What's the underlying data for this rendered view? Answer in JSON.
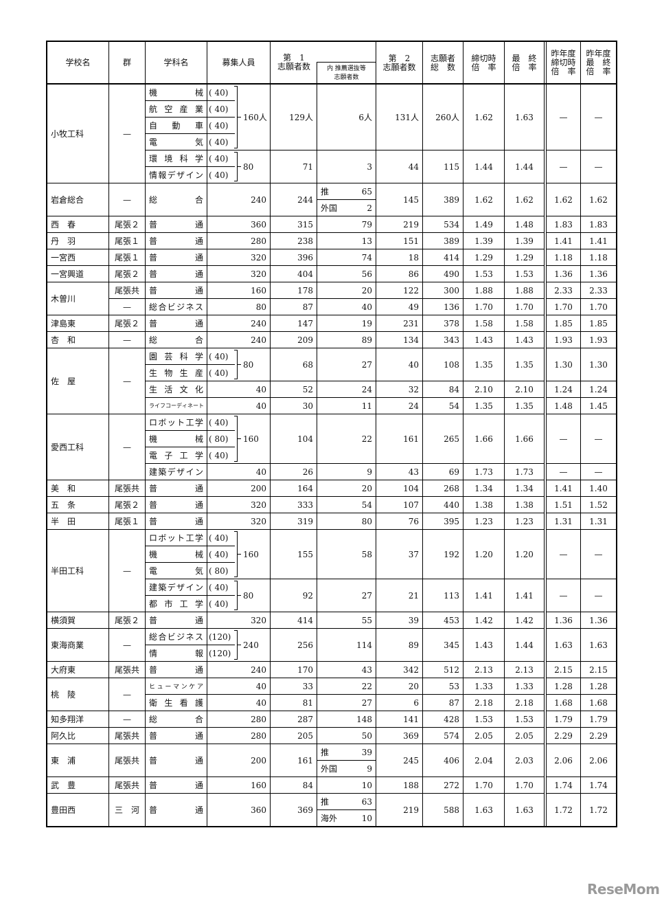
{
  "header": {
    "school": "学校名",
    "group": "群",
    "dept": "学科名",
    "recruit": "募集人員",
    "first": [
      "第　1",
      "志願者数"
    ],
    "recommend": [
      "内 推薦選抜等",
      "志願者数"
    ],
    "second": [
      "第　2",
      "志願者数"
    ],
    "total": [
      "志願者",
      "総　数"
    ],
    "rate_close": [
      "締切時",
      "倍　率"
    ],
    "rate_final": [
      "最　終",
      "倍　率"
    ],
    "prev_close": [
      "昨年度",
      "締切時",
      "倍　率"
    ],
    "prev_final": [
      "昨年度",
      "最　終",
      "倍　率"
    ]
  },
  "schools": [
    {
      "name": "小牧工科",
      "group": "—",
      "blocks": [
        {
          "depts": [
            {
              "name": "機械",
              "quota": "( 40)"
            },
            {
              "name": "航空産業",
              "quota": "( 40)"
            },
            {
              "name": "自動車",
              "quota": "( 40)"
            },
            {
              "name": "電気",
              "quota": "( 40)"
            }
          ],
          "recruit": "160人",
          "first": "129人",
          "recommend": "6人",
          "second": "131人",
          "total": "260人",
          "rate_close": "1.62",
          "rate_final": "1.63",
          "prev_close": "—",
          "prev_final": "—"
        },
        {
          "depts": [
            {
              "name": "環境科学",
              "quota": "( 40)"
            },
            {
              "name": "情報デザイン",
              "quota": "( 40)"
            }
          ],
          "recruit": "80",
          "first": "71",
          "recommend": "3",
          "second": "44",
          "total": "115",
          "rate_close": "1.44",
          "rate_final": "1.44",
          "prev_close": "—",
          "prev_final": "—"
        }
      ]
    },
    {
      "name": "岩倉総合",
      "group": "—",
      "blocks": [
        {
          "depts": [
            {
              "name": "総合"
            }
          ],
          "recruit": "240",
          "first": "244",
          "recommend": [
            {
              "label": "推",
              "value": "65"
            },
            {
              "label": "外国",
              "value": "2"
            }
          ],
          "second": "145",
          "total": "389",
          "rate_close": "1.62",
          "rate_final": "1.62",
          "prev_close": "1.62",
          "prev_final": "1.62"
        }
      ]
    },
    {
      "name": "西　春",
      "group": "尾張２",
      "blocks": [
        {
          "depts": [
            {
              "name": "普通"
            }
          ],
          "recruit": "360",
          "first": "315",
          "recommend": "79",
          "second": "219",
          "total": "534",
          "rate_close": "1.49",
          "rate_final": "1.48",
          "prev_close": "1.83",
          "prev_final": "1.83"
        }
      ]
    },
    {
      "name": "丹　羽",
      "group": "尾張１",
      "blocks": [
        {
          "depts": [
            {
              "name": "普通"
            }
          ],
          "recruit": "280",
          "first": "238",
          "recommend": "13",
          "second": "151",
          "total": "389",
          "rate_close": "1.39",
          "rate_final": "1.39",
          "prev_close": "1.41",
          "prev_final": "1.41"
        }
      ]
    },
    {
      "name": "一宮西",
      "group": "尾張１",
      "blocks": [
        {
          "depts": [
            {
              "name": "普通"
            }
          ],
          "recruit": "320",
          "first": "396",
          "recommend": "74",
          "second": "18",
          "total": "414",
          "rate_close": "1.29",
          "rate_final": "1.29",
          "prev_close": "1.18",
          "prev_final": "1.18"
        }
      ]
    },
    {
      "name": "一宮興道",
      "group": "尾張２",
      "blocks": [
        {
          "depts": [
            {
              "name": "普通"
            }
          ],
          "recruit": "320",
          "first": "404",
          "recommend": "56",
          "second": "86",
          "total": "490",
          "rate_close": "1.53",
          "rate_final": "1.53",
          "prev_close": "1.36",
          "prev_final": "1.36"
        }
      ]
    },
    {
      "name": "木曽川",
      "blocks": [
        {
          "group": "尾張共",
          "depts": [
            {
              "name": "普通"
            }
          ],
          "recruit": "160",
          "first": "178",
          "recommend": "20",
          "second": "122",
          "total": "300",
          "rate_close": "1.88",
          "rate_final": "1.88",
          "prev_close": "2.33",
          "prev_final": "2.33"
        },
        {
          "group": "—",
          "depts": [
            {
              "name": "総合ビジネス"
            }
          ],
          "recruit": "80",
          "first": "87",
          "recommend": "40",
          "second": "49",
          "total": "136",
          "rate_close": "1.70",
          "rate_final": "1.70",
          "prev_close": "1.70",
          "prev_final": "1.70"
        }
      ]
    },
    {
      "name": "津島東",
      "group": "尾張２",
      "blocks": [
        {
          "depts": [
            {
              "name": "普通"
            }
          ],
          "recruit": "240",
          "first": "147",
          "recommend": "19",
          "second": "231",
          "total": "378",
          "rate_close": "1.58",
          "rate_final": "1.58",
          "prev_close": "1.85",
          "prev_final": "1.85"
        }
      ]
    },
    {
      "name": "杏　和",
      "group": "—",
      "blocks": [
        {
          "depts": [
            {
              "name": "総合"
            }
          ],
          "recruit": "240",
          "first": "209",
          "recommend": "89",
          "second": "134",
          "total": "343",
          "rate_close": "1.43",
          "rate_final": "1.43",
          "prev_close": "1.93",
          "prev_final": "1.93"
        }
      ]
    },
    {
      "name": "佐　屋",
      "group": "—",
      "blocks": [
        {
          "depts": [
            {
              "name": "園芸科学",
              "quota": "( 40)"
            },
            {
              "name": "生物生産",
              "quota": "( 40)"
            }
          ],
          "recruit": "80",
          "first": "68",
          "recommend": "27",
          "second": "40",
          "total": "108",
          "rate_close": "1.35",
          "rate_final": "1.35",
          "prev_close": "1.30",
          "prev_final": "1.30"
        },
        {
          "depts": [
            {
              "name": "生活文化"
            }
          ],
          "recruit": "40",
          "first": "52",
          "recommend": "24",
          "second": "32",
          "total": "84",
          "rate_close": "2.10",
          "rate_final": "2.10",
          "prev_close": "1.24",
          "prev_final": "1.24"
        },
        {
          "depts": [
            {
              "name": "ライフコーディネート"
            }
          ],
          "recruit": "40",
          "first": "30",
          "recommend": "11",
          "second": "24",
          "total": "54",
          "rate_close": "1.35",
          "rate_final": "1.35",
          "prev_close": "1.48",
          "prev_final": "1.45"
        }
      ]
    },
    {
      "name": "愛西工科",
      "group": "—",
      "blocks": [
        {
          "depts": [
            {
              "name": "ロボット工学",
              "quota": "( 40)"
            },
            {
              "name": "機械",
              "quota": "( 80)"
            },
            {
              "name": "電子工学",
              "quota": "( 40)"
            }
          ],
          "recruit": "160",
          "first": "104",
          "recommend": "22",
          "second": "161",
          "total": "265",
          "rate_close": "1.66",
          "rate_final": "1.66",
          "prev_close": "—",
          "prev_final": "—"
        },
        {
          "depts": [
            {
              "name": "建築デザイン"
            }
          ],
          "recruit": "40",
          "first": "26",
          "recommend": "9",
          "second": "43",
          "total": "69",
          "rate_close": "1.73",
          "rate_final": "1.73",
          "prev_close": "—",
          "prev_final": "—"
        }
      ]
    },
    {
      "name": "美　和",
      "group": "尾張共",
      "blocks": [
        {
          "depts": [
            {
              "name": "普通"
            }
          ],
          "recruit": "200",
          "first": "164",
          "recommend": "20",
          "second": "104",
          "total": "268",
          "rate_close": "1.34",
          "rate_final": "1.34",
          "prev_close": "1.41",
          "prev_final": "1.40"
        }
      ]
    },
    {
      "name": "五　条",
      "group": "尾張２",
      "blocks": [
        {
          "depts": [
            {
              "name": "普通"
            }
          ],
          "recruit": "320",
          "first": "333",
          "recommend": "54",
          "second": "107",
          "total": "440",
          "rate_close": "1.38",
          "rate_final": "1.38",
          "prev_close": "1.51",
          "prev_final": "1.52"
        }
      ]
    },
    {
      "name": "半　田",
      "group": "尾張１",
      "blocks": [
        {
          "depts": [
            {
              "name": "普通"
            }
          ],
          "recruit": "320",
          "first": "319",
          "recommend": "80",
          "second": "76",
          "total": "395",
          "rate_close": "1.23",
          "rate_final": "1.23",
          "prev_close": "1.31",
          "prev_final": "1.31"
        }
      ]
    },
    {
      "name": "半田工科",
      "group": "—",
      "blocks": [
        {
          "depts": [
            {
              "name": "ロボット工学",
              "quota": "( 40)"
            },
            {
              "name": "機械",
              "quota": "( 40)"
            },
            {
              "name": "電気",
              "quota": "( 80)"
            }
          ],
          "recruit": "160",
          "first": "155",
          "recommend": "58",
          "second": "37",
          "total": "192",
          "rate_close": "1.20",
          "rate_final": "1.20",
          "prev_close": "—",
          "prev_final": "—"
        },
        {
          "depts": [
            {
              "name": "建築デザイン",
              "quota": "( 40)"
            },
            {
              "name": "都市工学",
              "quota": "( 40)"
            }
          ],
          "recruit": "80",
          "first": "92",
          "recommend": "27",
          "second": "21",
          "total": "113",
          "rate_close": "1.41",
          "rate_final": "1.41",
          "prev_close": "—",
          "prev_final": "—"
        }
      ]
    },
    {
      "name": "横須賀",
      "group": "尾張２",
      "blocks": [
        {
          "depts": [
            {
              "name": "普通"
            }
          ],
          "recruit": "320",
          "first": "414",
          "recommend": "55",
          "second": "39",
          "total": "453",
          "rate_close": "1.42",
          "rate_final": "1.42",
          "prev_close": "1.36",
          "prev_final": "1.36"
        }
      ]
    },
    {
      "name": "東海商業",
      "group": "—",
      "blocks": [
        {
          "depts": [
            {
              "name": "総合ビジネス",
              "quota": "(120)"
            },
            {
              "name": "情報",
              "quota": "(120)"
            }
          ],
          "recruit": "240",
          "first": "256",
          "recommend": "114",
          "second": "89",
          "total": "345",
          "rate_close": "1.43",
          "rate_final": "1.44",
          "prev_close": "1.63",
          "prev_final": "1.63"
        }
      ]
    },
    {
      "name": "大府東",
      "group": "尾張共",
      "blocks": [
        {
          "depts": [
            {
              "name": "普通"
            }
          ],
          "recruit": "240",
          "first": "170",
          "recommend": "43",
          "second": "342",
          "total": "512",
          "rate_close": "2.13",
          "rate_final": "2.13",
          "prev_close": "2.15",
          "prev_final": "2.15"
        }
      ]
    },
    {
      "name": "桃　陵",
      "group": "—",
      "blocks": [
        {
          "depts": [
            {
              "name": "ヒューマンケア"
            }
          ],
          "recruit": "40",
          "first": "33",
          "recommend": "22",
          "second": "20",
          "total": "53",
          "rate_close": "1.33",
          "rate_final": "1.33",
          "prev_close": "1.28",
          "prev_final": "1.28"
        },
        {
          "depts": [
            {
              "name": "衛生看護"
            }
          ],
          "recruit": "40",
          "first": "81",
          "recommend": "27",
          "second": "6",
          "total": "87",
          "rate_close": "2.18",
          "rate_final": "2.18",
          "prev_close": "1.68",
          "prev_final": "1.68"
        }
      ]
    },
    {
      "name": "知多翔洋",
      "group": "—",
      "blocks": [
        {
          "depts": [
            {
              "name": "総合"
            }
          ],
          "recruit": "280",
          "first": "287",
          "recommend": "148",
          "second": "141",
          "total": "428",
          "rate_close": "1.53",
          "rate_final": "1.53",
          "prev_close": "1.79",
          "prev_final": "1.79"
        }
      ]
    },
    {
      "name": "阿久比",
      "group": "尾張共",
      "blocks": [
        {
          "depts": [
            {
              "name": "普通"
            }
          ],
          "recruit": "280",
          "first": "205",
          "recommend": "50",
          "second": "369",
          "total": "574",
          "rate_close": "2.05",
          "rate_final": "2.05",
          "prev_close": "2.29",
          "prev_final": "2.29"
        }
      ]
    },
    {
      "name": "東　浦",
      "group": "尾張共",
      "blocks": [
        {
          "depts": [
            {
              "name": "普通"
            }
          ],
          "recruit": "200",
          "first": "161",
          "recommend": [
            {
              "label": "推",
              "value": "39"
            },
            {
              "label": "外国",
              "value": "9"
            }
          ],
          "second": "245",
          "total": "406",
          "rate_close": "2.04",
          "rate_final": "2.03",
          "prev_close": "2.06",
          "prev_final": "2.06"
        }
      ]
    },
    {
      "name": "武　豊",
      "group": "尾張共",
      "blocks": [
        {
          "depts": [
            {
              "name": "普通"
            }
          ],
          "recruit": "160",
          "first": "84",
          "recommend": "10",
          "second": "188",
          "total": "272",
          "rate_close": "1.70",
          "rate_final": "1.70",
          "prev_close": "1.74",
          "prev_final": "1.74"
        }
      ]
    },
    {
      "name": "豊田西",
      "group": "三　河",
      "blocks": [
        {
          "depts": [
            {
              "name": "普通"
            }
          ],
          "recruit": "360",
          "first": "369",
          "recommend": [
            {
              "label": "推",
              "value": "63"
            },
            {
              "label": "海外",
              "value": "10"
            }
          ],
          "second": "219",
          "total": "588",
          "rate_close": "1.63",
          "rate_final": "1.63",
          "prev_close": "1.72",
          "prev_final": "1.72"
        }
      ]
    }
  ],
  "watermark": "ReseMom"
}
